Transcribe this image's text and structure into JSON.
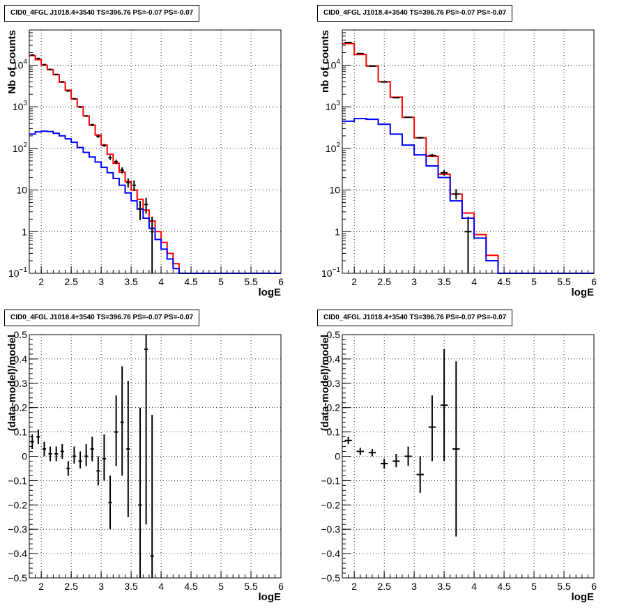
{
  "chart_data": [
    {
      "type": "line",
      "title": "CID0_4FGL J1018.4+3540 TS=396.76 PS=-0.07 PS=-0.07",
      "xlabel": "logE",
      "ylabel": "Nb of counts",
      "log_y": true,
      "xlim": [
        1.8,
        6.0
      ],
      "ylim": [
        0.1,
        70000
      ],
      "grid": true,
      "xticks": [
        "2",
        "2.5",
        "3",
        "3.5",
        "4",
        "4.5",
        "5",
        "5.5",
        "6"
      ],
      "yticks": [
        {
          "v": 0.1,
          "b": "10",
          "s": "−1"
        },
        {
          "v": 1,
          "b": "1",
          "s": ""
        },
        {
          "v": 10,
          "b": "10",
          "s": ""
        },
        {
          "v": 100,
          "b": "10",
          "s": "2"
        },
        {
          "v": 1000,
          "b": "10",
          "s": "3"
        },
        {
          "v": 10000,
          "b": "10",
          "s": "4"
        }
      ],
      "bin_edges": [
        1.8,
        1.9,
        2.0,
        2.1,
        2.2,
        2.3,
        2.4,
        2.5,
        2.6,
        2.7,
        2.8,
        2.9,
        3.0,
        3.1,
        3.2,
        3.3,
        3.4,
        3.5,
        3.6,
        3.7,
        3.8,
        3.9,
        4.0,
        4.1,
        4.2,
        4.3,
        4.4,
        4.5,
        4.6,
        4.7,
        4.8,
        4.9,
        5.0,
        5.1,
        5.2,
        5.3,
        5.4,
        5.5,
        5.6,
        5.7,
        5.8,
        5.9,
        6.0
      ],
      "series": [
        {
          "color": "#ff0000",
          "values": [
            17000,
            13500,
            10000,
            7800,
            5900,
            3900,
            2500,
            1550,
            1000,
            600,
            360,
            210,
            120,
            72,
            44,
            27,
            16,
            10,
            6,
            3.3,
            1.8,
            1.0,
            0.55,
            0.3,
            0.17,
            0.1,
            0.1,
            0.1,
            0.1,
            0.1,
            0.1,
            0.1,
            0.1,
            0.1,
            0.1,
            0.1,
            0.1,
            0.1,
            0.1,
            0.1,
            0.1,
            0.1
          ]
        },
        {
          "color": "#0000ff",
          "values": [
            220,
            250,
            260,
            255,
            230,
            200,
            170,
            140,
            105,
            80,
            62,
            47,
            35,
            26,
            19,
            13,
            8.5,
            5.5,
            3.5,
            2.1,
            1.2,
            0.65,
            0.38,
            0.22,
            0.13,
            0.1,
            0.1,
            0.1,
            0.1,
            0.1,
            0.1,
            0.1,
            0.1,
            0.1,
            0.1,
            0.1,
            0.1,
            0.1,
            0.1,
            0.1,
            0.1,
            0.1
          ]
        }
      ],
      "points": [
        {
          "x": 1.85,
          "y": 17500,
          "lo": 17000,
          "hi": 18000
        },
        {
          "x": 1.95,
          "y": 14500,
          "lo": 14000,
          "hi": 15000
        },
        {
          "x": 2.05,
          "y": 10300,
          "lo": 10000,
          "hi": 10600
        },
        {
          "x": 2.15,
          "y": 7900,
          "lo": 7700,
          "hi": 8100
        },
        {
          "x": 2.25,
          "y": 6000,
          "lo": 5850,
          "hi": 6150
        },
        {
          "x": 2.35,
          "y": 4000,
          "lo": 3900,
          "hi": 4100
        },
        {
          "x": 2.45,
          "y": 2400,
          "lo": 2300,
          "hi": 2500
        },
        {
          "x": 2.55,
          "y": 1550,
          "lo": 1500,
          "hi": 1600
        },
        {
          "x": 2.65,
          "y": 980,
          "lo": 950,
          "hi": 1010
        },
        {
          "x": 2.75,
          "y": 600,
          "lo": 580,
          "hi": 625
        },
        {
          "x": 2.85,
          "y": 370,
          "lo": 350,
          "hi": 390
        },
        {
          "x": 2.95,
          "y": 195,
          "lo": 180,
          "hi": 210
        },
        {
          "x": 3.05,
          "y": 118,
          "lo": 108,
          "hi": 128
        },
        {
          "x": 3.15,
          "y": 60,
          "lo": 53,
          "hi": 67
        },
        {
          "x": 3.25,
          "y": 48,
          "lo": 42,
          "hi": 54
        },
        {
          "x": 3.35,
          "y": 30,
          "lo": 25,
          "hi": 35
        },
        {
          "x": 3.45,
          "y": 15,
          "lo": 11.5,
          "hi": 19
        },
        {
          "x": 3.55,
          "y": 13,
          "lo": 9.5,
          "hi": 17
        },
        {
          "x": 3.65,
          "y": 3.5,
          "lo": 1.9,
          "hi": 5.5
        },
        {
          "x": 3.75,
          "y": 4.5,
          "lo": 2.7,
          "hi": 6.5
        },
        {
          "x": 3.85,
          "y": 1.0,
          "lo": 0.1,
          "hi": 2.3
        }
      ]
    },
    {
      "type": "line",
      "title": "CID0_4FGL J1018.4+3540 TS=396.76 PS=-0.07 PS=-0.07",
      "xlabel": "logE",
      "ylabel": "nb of counts",
      "log_y": true,
      "xlim": [
        1.8,
        6.0
      ],
      "ylim": [
        0.1,
        70000
      ],
      "grid": true,
      "xticks": [
        "2",
        "2.5",
        "3",
        "3.5",
        "4",
        "4.5",
        "5",
        "5.5",
        "6"
      ],
      "yticks": [
        {
          "v": 0.1,
          "b": "10",
          "s": "−1"
        },
        {
          "v": 1,
          "b": "1",
          "s": ""
        },
        {
          "v": 10,
          "b": "10",
          "s": ""
        },
        {
          "v": 100,
          "b": "10",
          "s": "2"
        },
        {
          "v": 1000,
          "b": "10",
          "s": "3"
        },
        {
          "v": 10000,
          "b": "10",
          "s": "4"
        }
      ],
      "bin_edges": [
        1.8,
        2.0,
        2.2,
        2.4,
        2.6,
        2.8,
        3.0,
        3.2,
        3.4,
        3.6,
        3.8,
        4.0,
        4.2,
        4.4,
        4.6,
        4.8,
        5.0,
        5.2,
        5.4,
        5.6,
        5.8,
        6.0
      ],
      "series": [
        {
          "color": "#ff0000",
          "values": [
            33000,
            18000,
            9500,
            4000,
            1700,
            560,
            180,
            65,
            24,
            8,
            2.8,
            0.85,
            0.27,
            0.1,
            0.1,
            0.1,
            0.1,
            0.1,
            0.1,
            0.1,
            0.1
          ]
        },
        {
          "color": "#0000ff",
          "values": [
            450,
            520,
            500,
            380,
            220,
            120,
            70,
            38,
            20,
            5.5,
            2.1,
            0.7,
            0.2,
            0.1,
            0.1,
            0.1,
            0.1,
            0.1,
            0.1,
            0.1,
            0.1
          ]
        }
      ],
      "points": [
        {
          "x": 1.9,
          "y": 35000,
          "lo": 34500,
          "hi": 35500
        },
        {
          "x": 2.1,
          "y": 19000,
          "lo": 18600,
          "hi": 19400
        },
        {
          "x": 2.3,
          "y": 9500,
          "lo": 9300,
          "hi": 9700
        },
        {
          "x": 2.5,
          "y": 3950,
          "lo": 3850,
          "hi": 4050
        },
        {
          "x": 2.7,
          "y": 1650,
          "lo": 1600,
          "hi": 1700
        },
        {
          "x": 2.9,
          "y": 560,
          "lo": 540,
          "hi": 580
        },
        {
          "x": 3.1,
          "y": 180,
          "lo": 170,
          "hi": 190
        },
        {
          "x": 3.3,
          "y": 68,
          "lo": 62,
          "hi": 74
        },
        {
          "x": 3.5,
          "y": 26,
          "lo": 22,
          "hi": 30
        },
        {
          "x": 3.7,
          "y": 8,
          "lo": 6,
          "hi": 10.5
        },
        {
          "x": 3.9,
          "y": 1.0,
          "lo": 0.1,
          "hi": 2.3
        }
      ]
    },
    {
      "type": "scatter",
      "title": "CID0_4FGL J1018.4+3540 TS=396.76 PS=-0.07 PS=-0.07",
      "xlabel": "logE",
      "ylabel": "(data-model)/model",
      "log_y": false,
      "xlim": [
        1.8,
        6.0
      ],
      "ylim": [
        -0.5,
        0.5
      ],
      "grid": true,
      "xticks": [
        "2",
        "2.5",
        "3",
        "3.5",
        "4",
        "4.5",
        "5",
        "5.5",
        "6"
      ],
      "yticks": [
        {
          "v": -0.5,
          "b": "−0.5",
          "s": ""
        },
        {
          "v": -0.4,
          "b": "−0.4",
          "s": ""
        },
        {
          "v": -0.3,
          "b": "−0.3",
          "s": ""
        },
        {
          "v": -0.2,
          "b": "−0.2",
          "s": ""
        },
        {
          "v": -0.1,
          "b": "−0.1",
          "s": ""
        },
        {
          "v": 0,
          "b": "0",
          "s": ""
        },
        {
          "v": 0.1,
          "b": "0.1",
          "s": ""
        },
        {
          "v": 0.2,
          "b": "0.2",
          "s": ""
        },
        {
          "v": 0.3,
          "b": "0.3",
          "s": ""
        },
        {
          "v": 0.4,
          "b": "0.4",
          "s": ""
        },
        {
          "v": 0.5,
          "b": "0.5",
          "s": ""
        }
      ],
      "halfwidth": 0.05,
      "series": [],
      "points": [
        {
          "x": 1.85,
          "y": 0.06,
          "lo": 0.03,
          "hi": 0.09
        },
        {
          "x": 1.95,
          "y": 0.08,
          "lo": 0.05,
          "hi": 0.11
        },
        {
          "x": 2.05,
          "y": 0.03,
          "lo": 0.0,
          "hi": 0.06
        },
        {
          "x": 2.15,
          "y": 0.01,
          "lo": -0.02,
          "hi": 0.04
        },
        {
          "x": 2.25,
          "y": 0.01,
          "lo": -0.02,
          "hi": 0.04
        },
        {
          "x": 2.35,
          "y": 0.02,
          "lo": -0.01,
          "hi": 0.05
        },
        {
          "x": 2.45,
          "y": -0.05,
          "lo": -0.08,
          "hi": -0.02
        },
        {
          "x": 2.55,
          "y": 0.0,
          "lo": -0.03,
          "hi": 0.04
        },
        {
          "x": 2.65,
          "y": -0.02,
          "lo": -0.05,
          "hi": 0.02
        },
        {
          "x": 2.75,
          "y": 0.0,
          "lo": -0.04,
          "hi": 0.05
        },
        {
          "x": 2.85,
          "y": 0.03,
          "lo": -0.02,
          "hi": 0.08
        },
        {
          "x": 2.95,
          "y": -0.06,
          "lo": -0.12,
          "hi": 0.0
        },
        {
          "x": 3.05,
          "y": -0.01,
          "lo": -0.1,
          "hi": 0.09
        },
        {
          "x": 3.15,
          "y": -0.19,
          "lo": -0.3,
          "hi": -0.08
        },
        {
          "x": 3.25,
          "y": 0.1,
          "lo": -0.04,
          "hi": 0.25
        },
        {
          "x": 3.35,
          "y": 0.14,
          "lo": -0.08,
          "hi": 0.37
        },
        {
          "x": 3.45,
          "y": 0.03,
          "lo": -0.25,
          "hi": 0.31
        },
        {
          "x": 3.65,
          "y": -0.2,
          "lo": -0.5,
          "hi": 0.2
        },
        {
          "x": 3.75,
          "y": 0.44,
          "lo": -0.28,
          "hi": 0.5
        },
        {
          "x": 3.85,
          "y": -0.41,
          "lo": -0.5,
          "hi": 0.17
        }
      ]
    },
    {
      "type": "scatter",
      "title": "CID0_4FGL J1018.4+3540 TS=396.76 PS=-0.07 PS=-0.07",
      "xlabel": "logE",
      "ylabel": "(data-model)/model",
      "log_y": false,
      "xlim": [
        1.8,
        6.0
      ],
      "ylim": [
        -0.5,
        0.5
      ],
      "grid": true,
      "xticks": [
        "2",
        "2.5",
        "3",
        "3.5",
        "4",
        "4.5",
        "5",
        "5.5",
        "6"
      ],
      "yticks": [
        {
          "v": -0.5,
          "b": "−0.5",
          "s": ""
        },
        {
          "v": -0.4,
          "b": "−0.4",
          "s": ""
        },
        {
          "v": -0.3,
          "b": "−0.3",
          "s": ""
        },
        {
          "v": -0.2,
          "b": "−0.2",
          "s": ""
        },
        {
          "v": -0.1,
          "b": "−0.1",
          "s": ""
        },
        {
          "v": 0,
          "b": "0",
          "s": ""
        },
        {
          "v": 0.1,
          "b": "0.1",
          "s": ""
        },
        {
          "v": 0.2,
          "b": "0.2",
          "s": ""
        },
        {
          "v": 0.3,
          "b": "0.3",
          "s": ""
        },
        {
          "v": 0.4,
          "b": "0.4",
          "s": ""
        },
        {
          "v": 0.5,
          "b": "0.5",
          "s": ""
        }
      ],
      "halfwidth": 0.1,
      "series": [],
      "points": [
        {
          "x": 1.9,
          "y": 0.065,
          "lo": 0.05,
          "hi": 0.08
        },
        {
          "x": 2.1,
          "y": 0.02,
          "lo": 0.005,
          "hi": 0.035
        },
        {
          "x": 2.3,
          "y": 0.015,
          "lo": 0.0,
          "hi": 0.03
        },
        {
          "x": 2.5,
          "y": -0.03,
          "lo": -0.05,
          "hi": -0.01
        },
        {
          "x": 2.7,
          "y": -0.02,
          "lo": -0.045,
          "hi": 0.01
        },
        {
          "x": 2.9,
          "y": 0.0,
          "lo": -0.04,
          "hi": 0.04
        },
        {
          "x": 3.1,
          "y": -0.075,
          "lo": -0.15,
          "hi": 0.0
        },
        {
          "x": 3.3,
          "y": 0.12,
          "lo": -0.02,
          "hi": 0.25
        },
        {
          "x": 3.5,
          "y": 0.21,
          "lo": -0.02,
          "hi": 0.44
        },
        {
          "x": 3.7,
          "y": 0.03,
          "lo": -0.33,
          "hi": 0.39
        }
      ]
    }
  ]
}
